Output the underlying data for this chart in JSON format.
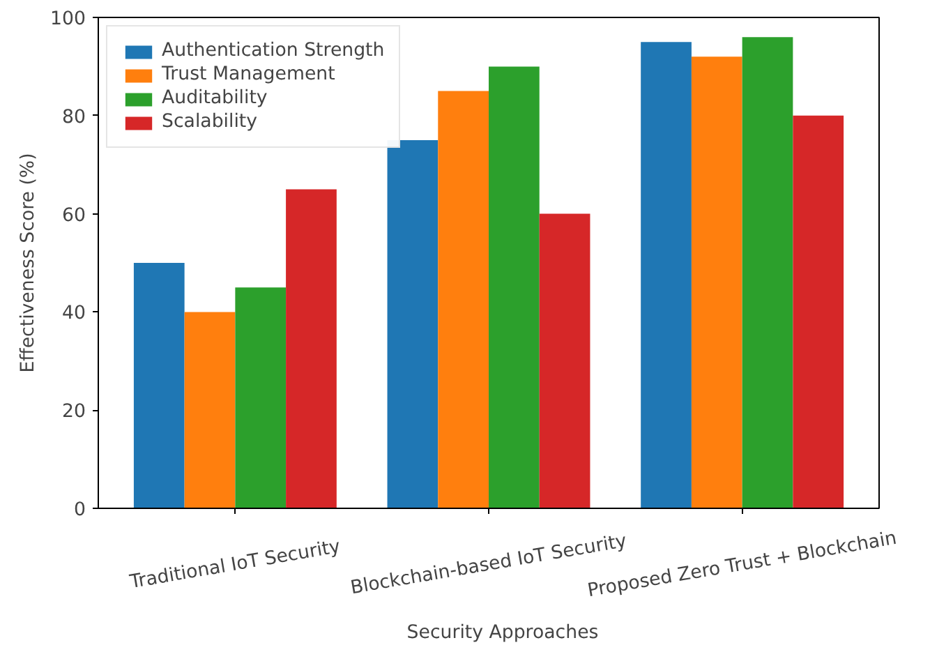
{
  "chart_data": {
    "type": "bar",
    "xlabel": "Security Approaches",
    "ylabel": "Effectiveness Score (%)",
    "categories": [
      "Traditional IoT Security",
      "Blockchain-based IoT Security",
      "Proposed Zero Trust + Blockchain"
    ],
    "series": [
      {
        "name": "Authentication Strength",
        "color": "#1f77b4",
        "values": [
          50,
          75,
          95
        ]
      },
      {
        "name": "Trust Management",
        "color": "#ff7f0e",
        "values": [
          40,
          85,
          92
        ]
      },
      {
        "name": "Auditability",
        "color": "#2ca02c",
        "values": [
          45,
          90,
          96
        ]
      },
      {
        "name": "Scalability",
        "color": "#d62728",
        "values": [
          65,
          60,
          80
        ]
      }
    ],
    "ylim": [
      0,
      100
    ],
    "yticks": [
      0,
      20,
      40,
      60,
      80,
      100
    ],
    "grid": false,
    "legend": "top left"
  }
}
